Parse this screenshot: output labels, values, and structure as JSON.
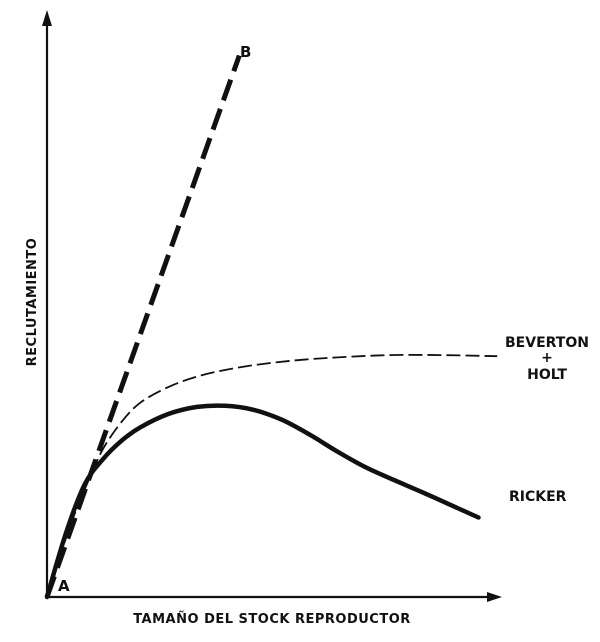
{
  "chart_data": {
    "type": "line",
    "title": "",
    "xlabel": "TAMAÑO DEL STOCK REPRODUCTOR",
    "ylabel": "RECLUTAMIENTO",
    "xlim": [
      0,
      10
    ],
    "ylim": [
      0,
      10
    ],
    "grid": false,
    "point_labels": [
      {
        "text": "A",
        "x": 0,
        "y": 0
      },
      {
        "text": "B",
        "x": 4.1,
        "y": 9.4
      }
    ],
    "series": [
      {
        "name": "B",
        "label_lines": [],
        "style": "long-dash-thick",
        "x": [
          0,
          4.1
        ],
        "y": [
          0,
          9.4
        ]
      },
      {
        "name": "BEVERTON + HOLT",
        "label_lines": [
          "BEVERTON",
          "+",
          "HOLT"
        ],
        "style": "dash-thin",
        "x": [
          0,
          0.5,
          0.9,
          1.2,
          1.6,
          2.0,
          2.6,
          3.3,
          4.2,
          5.2,
          6.2,
          7.3,
          8.4,
          9.6
        ],
        "y": [
          0,
          1.25,
          2.05,
          2.58,
          3.05,
          3.38,
          3.65,
          3.85,
          4.0,
          4.1,
          4.16,
          4.2,
          4.2,
          4.18
        ]
      },
      {
        "name": "RICKER",
        "label_lines": [
          "RICKER"
        ],
        "style": "solid-thick",
        "x": [
          0,
          0.4,
          0.8,
          1.2,
          1.6,
          2.0,
          2.6,
          3.2,
          3.8,
          4.4,
          5.0,
          5.6,
          6.2,
          6.8,
          7.4,
          8.0,
          8.6,
          9.2
        ],
        "y": [
          0,
          1.1,
          1.95,
          2.4,
          2.72,
          2.95,
          3.18,
          3.3,
          3.32,
          3.25,
          3.08,
          2.82,
          2.52,
          2.25,
          2.03,
          1.82,
          1.6,
          1.38
        ]
      }
    ]
  }
}
